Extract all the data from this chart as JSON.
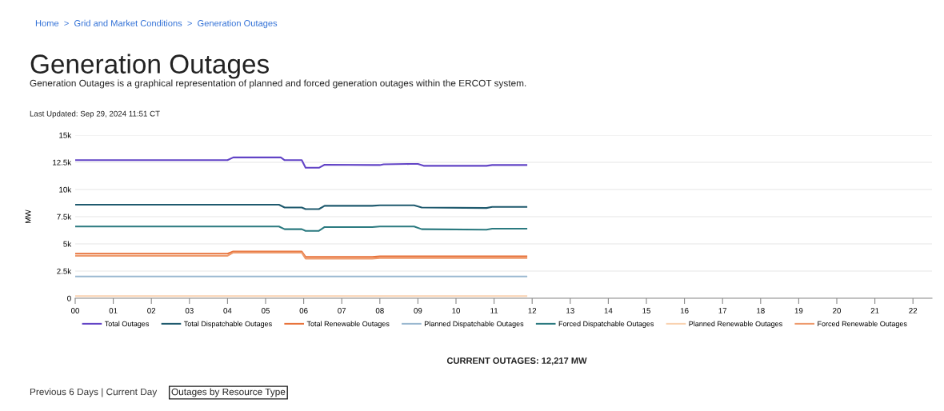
{
  "chart_data": {
    "type": "line",
    "title": "Generation Outages",
    "subtitle": "Generation Outages is a graphical representation of planned and forced generation outages within the ERCOT system.",
    "annotations": [
      "Home  >  Grid and Market Conditions  >  Generation Outages",
      "Last Updated: Sep 29, 2024 11:51 CT",
      "CURRENT OUTAGES: 12,217 MW",
      "Previous 6 Days | Current Day",
      "Outages by Resource Type"
    ],
    "ylabel": "MW",
    "xlim": [
      0,
      22.5
    ],
    "ylim": [
      0,
      15000
    ],
    "xticks": [
      {
        "value": 0,
        "label": "00"
      },
      {
        "value": 1,
        "label": "01"
      },
      {
        "value": 2,
        "label": "02"
      },
      {
        "value": 3,
        "label": "03"
      },
      {
        "value": 4,
        "label": "04"
      },
      {
        "value": 5,
        "label": "05"
      },
      {
        "value": 6,
        "label": "06"
      },
      {
        "value": 7,
        "label": "07"
      },
      {
        "value": 8,
        "label": "08"
      },
      {
        "value": 9,
        "label": "09"
      },
      {
        "value": 10,
        "label": "10"
      },
      {
        "value": 11,
        "label": "11"
      },
      {
        "value": 12,
        "label": "12"
      },
      {
        "value": 13,
        "label": "13"
      },
      {
        "value": 14,
        "label": "14"
      },
      {
        "value": 15,
        "label": "15"
      },
      {
        "value": 16,
        "label": "16"
      },
      {
        "value": 17,
        "label": "17"
      },
      {
        "value": 18,
        "label": "18"
      },
      {
        "value": 19,
        "label": "19"
      },
      {
        "value": 20,
        "label": "20"
      },
      {
        "value": 21,
        "label": "21"
      },
      {
        "value": 22,
        "label": "22"
      }
    ],
    "yticks": [
      0,
      {
        "value": 2500,
        "label": "2.5k"
      },
      {
        "value": 5000,
        "label": "5k"
      },
      {
        "value": 7500,
        "label": "7.5k"
      },
      {
        "value": 10000,
        "label": "10k"
      },
      {
        "value": 12500,
        "label": "12.5k"
      },
      {
        "value": 15000,
        "label": "15k"
      }
    ],
    "grid": "y",
    "legend": "bottom",
    "marker": "none",
    "line_style": "solid",
    "series": [
      {
        "name": "Total Outages",
        "color": "#6244c6",
        "x": [
          0,
          4.0,
          4.15,
          5.4,
          5.5,
          5.95,
          6.05,
          6.4,
          6.55,
          7.8,
          8.0,
          8.1,
          8.8,
          9.0,
          9.15,
          10.8,
          10.95,
          11.85
        ],
        "values": [
          12700,
          12700,
          12950,
          12950,
          12700,
          12700,
          12000,
          12000,
          12280,
          12250,
          12250,
          12320,
          12350,
          12350,
          12180,
          12180,
          12250,
          12250
        ]
      },
      {
        "name": "Total Dispatchable Outages",
        "color": "#1f5a6e",
        "x": [
          0,
          5.35,
          5.5,
          5.95,
          6.05,
          6.4,
          6.55,
          7.8,
          8.0,
          8.9,
          9.1,
          10.8,
          10.95,
          11.85
        ],
        "values": [
          8600,
          8600,
          8350,
          8350,
          8200,
          8200,
          8500,
          8500,
          8550,
          8550,
          8350,
          8300,
          8400,
          8400
        ]
      },
      {
        "name": "Total Renewable Outages",
        "color": "#e8733b",
        "x": [
          0,
          4.0,
          4.15,
          5.95,
          6.05,
          7.8,
          8.0,
          11.0,
          11.85
        ],
        "values": [
          4100,
          4100,
          4300,
          4300,
          3800,
          3800,
          3850,
          3850,
          3850
        ]
      },
      {
        "name": "Planned Dispatchable Outages",
        "color": "#9ab8d0",
        "x": [
          0,
          11.85
        ],
        "values": [
          2000,
          2000
        ]
      },
      {
        "name": "Forced Dispatchable Outages",
        "color": "#2b7a80",
        "x": [
          0,
          5.35,
          5.5,
          5.95,
          6.05,
          6.4,
          6.55,
          7.8,
          8.0,
          8.9,
          9.1,
          10.8,
          10.95,
          11.85
        ],
        "values": [
          6600,
          6600,
          6350,
          6350,
          6200,
          6200,
          6550,
          6550,
          6600,
          6600,
          6350,
          6300,
          6400,
          6400
        ]
      },
      {
        "name": "Planned Renewable Outages",
        "color": "#f9d2b0",
        "x": [
          0,
          11.85
        ],
        "values": [
          200,
          200
        ]
      },
      {
        "name": "Forced Renewable Outages",
        "color": "#ee9a6c",
        "x": [
          0,
          4.0,
          4.15,
          5.95,
          6.05,
          7.8,
          8.0,
          10.8,
          11.0,
          11.85
        ],
        "values": [
          3900,
          3900,
          4200,
          4200,
          3650,
          3650,
          3700,
          3700,
          3700,
          3700
        ]
      }
    ]
  }
}
